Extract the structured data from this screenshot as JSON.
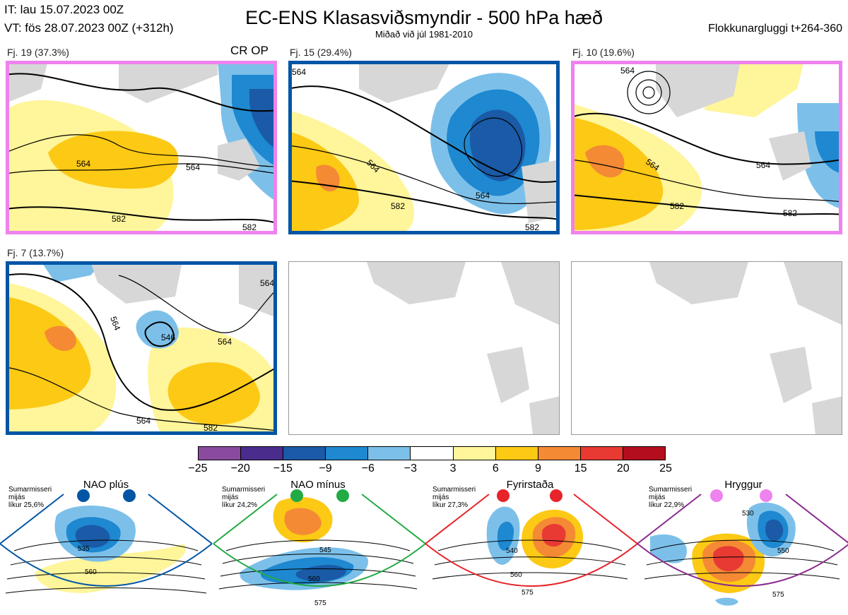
{
  "header": {
    "it": "IT: lau 15.07.2023 00Z",
    "vt": "VT: fös 28.07.2023 00Z  (+312h)",
    "title": "EC-ENS Klasasviðsmyndir - 500 hPa hæð",
    "subtitle": "Miðað við júl 1981-2010",
    "window": "Flokkunargluggi t+264-360"
  },
  "clusters": [
    {
      "label": "Fj. 19 (37.3%)",
      "frame_color": "#ee82ee",
      "badge": "CR OP",
      "contours": [
        "564",
        "564",
        "582",
        "582"
      ]
    },
    {
      "label": "Fj. 15 (29.4%)",
      "frame_color": "#0055a5",
      "contours": [
        "564",
        "564",
        "582",
        "582",
        "564"
      ]
    },
    {
      "label": "Fj. 10 (19.6%)",
      "frame_color": "#ee82ee",
      "contours": [
        "564",
        "564",
        "582",
        "582",
        "564"
      ]
    },
    {
      "label": "Fj. 7 (13.7%)",
      "frame_color": "#0055a5",
      "contours": [
        "564",
        "546",
        "564",
        "564",
        "582",
        "564"
      ]
    }
  ],
  "colorbar": {
    "ticks": [
      "−25",
      "−20",
      "−15",
      "−9",
      "−6",
      "−3",
      "3",
      "6",
      "9",
      "15",
      "20",
      "25"
    ],
    "colors": [
      "#8a4b9e",
      "#4a2c8c",
      "#1a5aa6",
      "#1e88d0",
      "#7cc0ea",
      "#ffffff",
      "#fff59a",
      "#fcc915",
      "#f58a35",
      "#e83a33",
      "#b40d1e"
    ]
  },
  "regimes": [
    {
      "name": "NAO plús",
      "dot_color": "#0055a5",
      "frame_color": "#0055a5",
      "meta": [
        "Sumarmisseri",
        "mijás",
        "líkur 25,6%"
      ],
      "contours": [
        "535",
        "560"
      ]
    },
    {
      "name": "NAO mínus",
      "dot_color": "#22aa44",
      "frame_color": "#22aa44",
      "meta": [
        "Sumarmisseri",
        "mijás",
        "líkur 24,2%"
      ],
      "contours": [
        "545",
        "560",
        "575"
      ]
    },
    {
      "name": "Fyrirstaða",
      "dot_color": "#e8232a",
      "frame_color": "#e8232a",
      "meta": [
        "Sumarmisseri",
        "mijás",
        "líkur 27,3%"
      ],
      "contours": [
        "540",
        "560",
        "575"
      ]
    },
    {
      "name": "Hryggur",
      "dot_color": "#ee82ee",
      "frame_color": "#8a2b8e",
      "meta": [
        "Sumarmisseri",
        "mijás",
        "líkur 22,9%"
      ],
      "contours": [
        "530",
        "550",
        "575"
      ]
    }
  ]
}
